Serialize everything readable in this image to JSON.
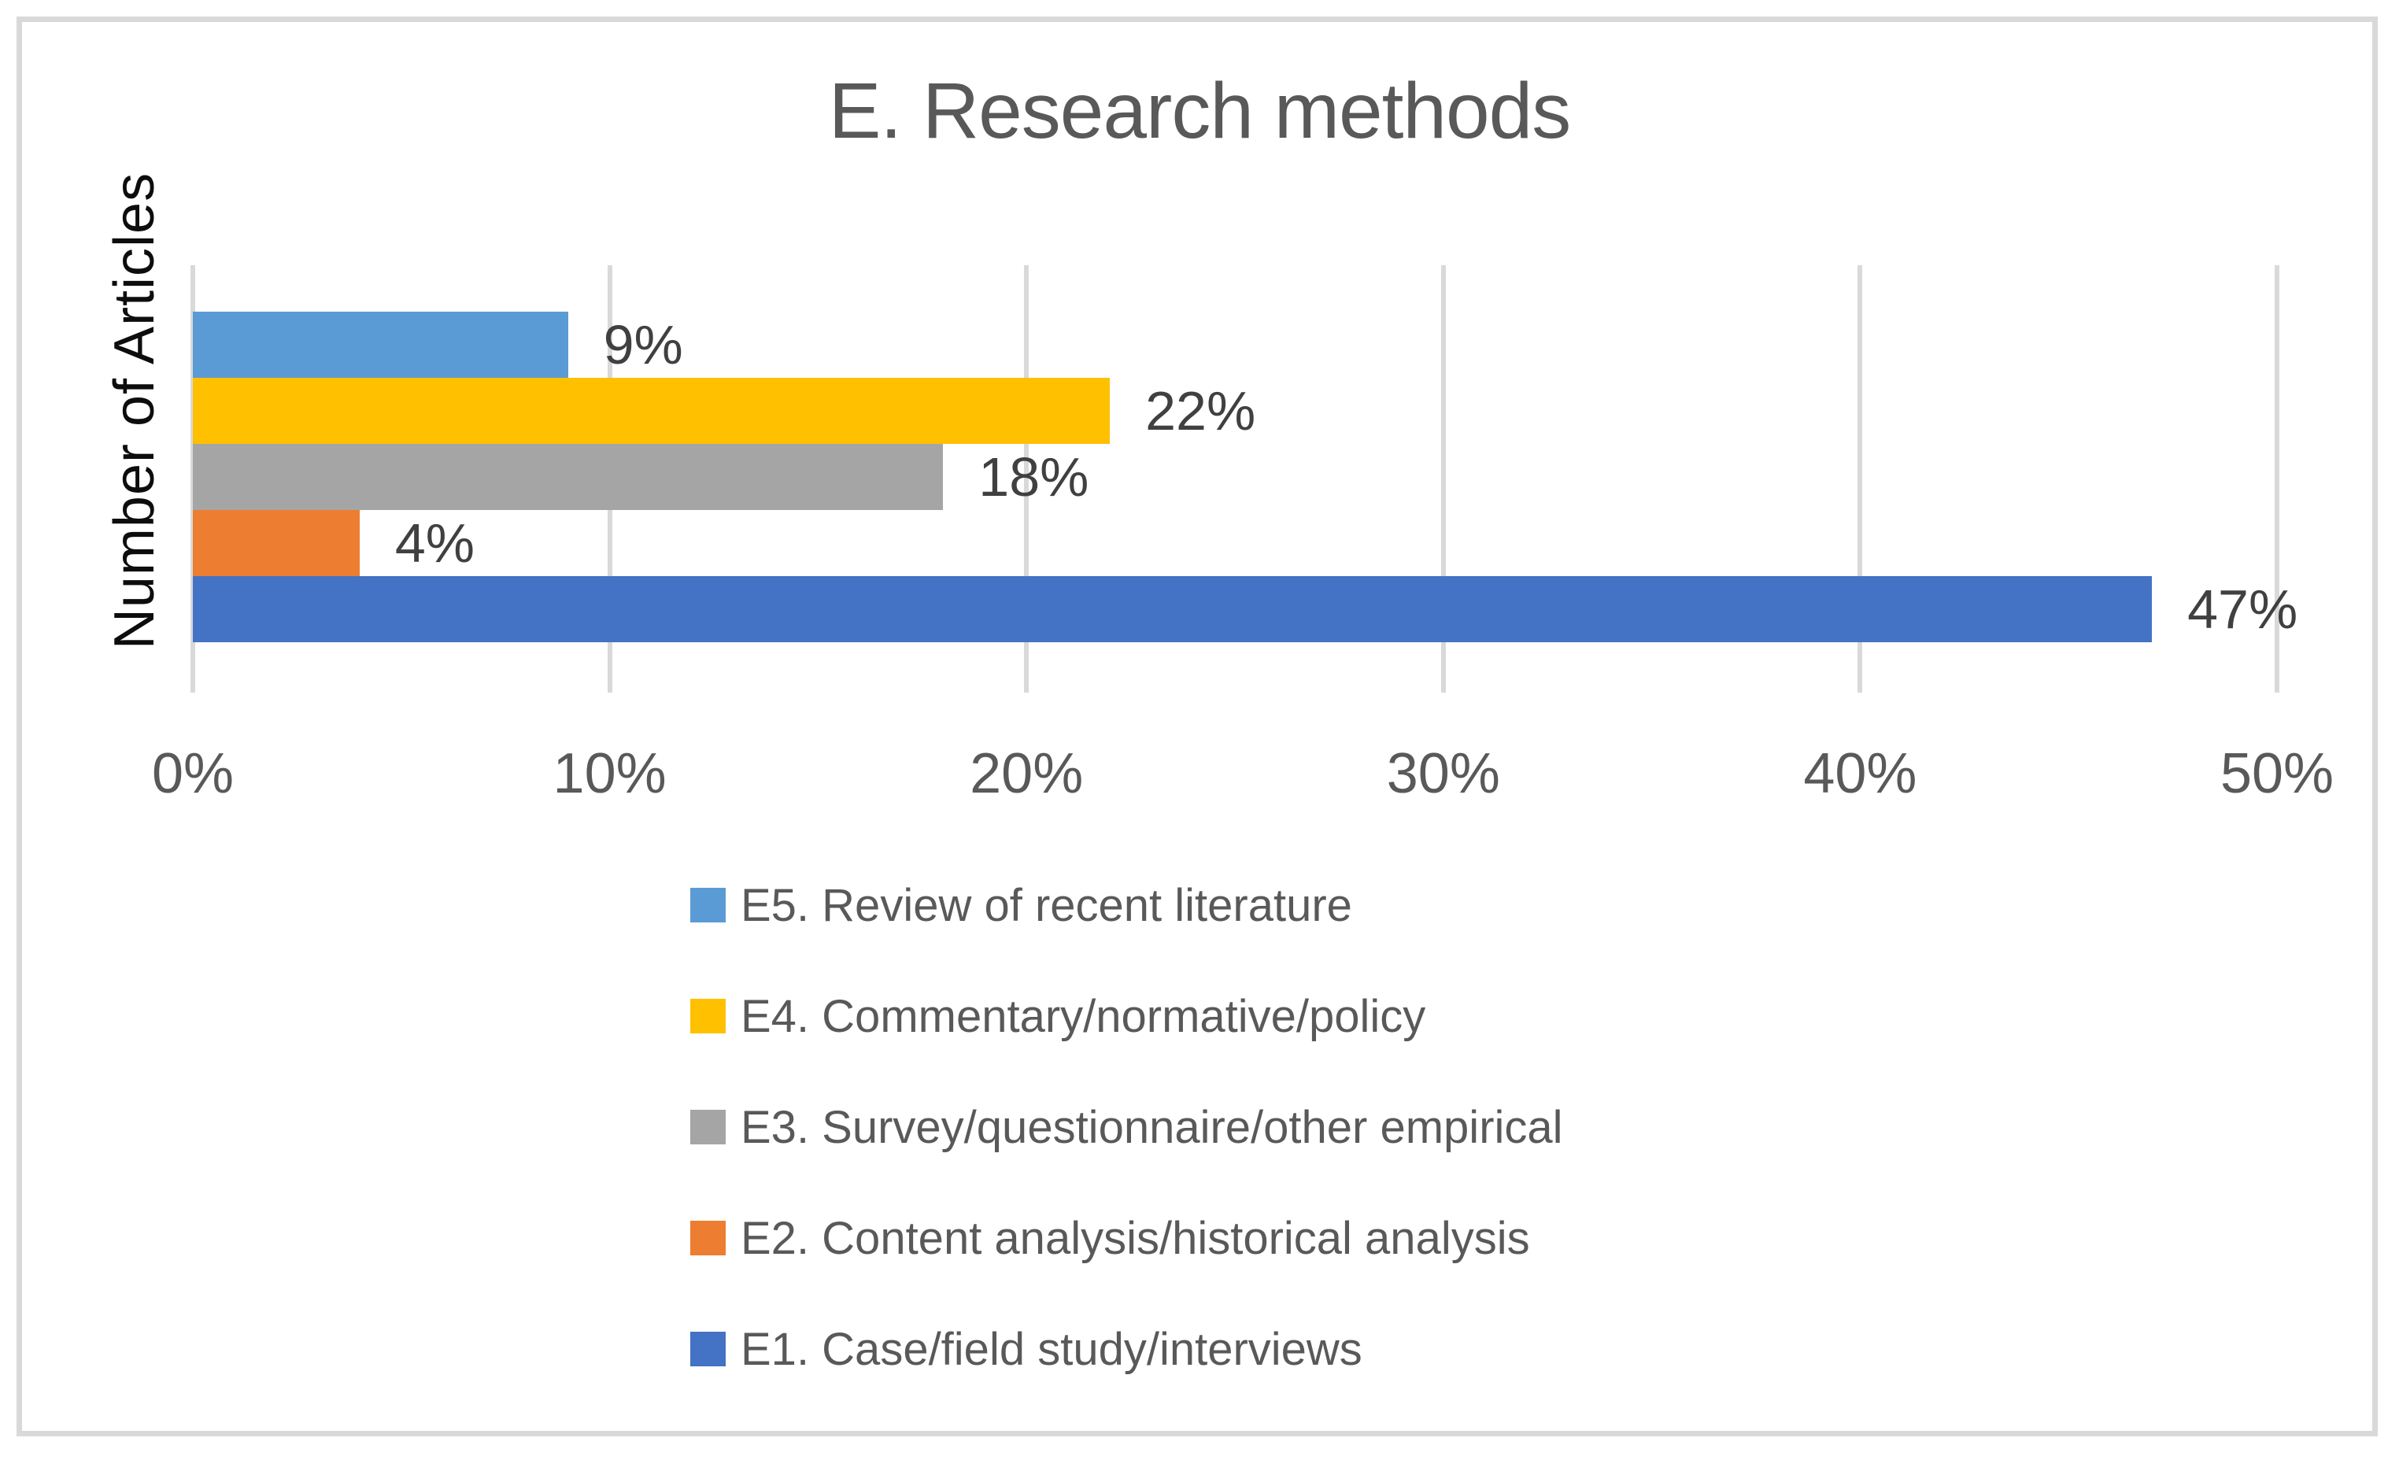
{
  "chart_data": {
    "type": "bar",
    "orientation": "horizontal",
    "title": "E. Research methods",
    "xlabel": "",
    "ylabel": "Number of Articles",
    "xlim": [
      0,
      50
    ],
    "x_tick_values": [
      0,
      10,
      20,
      30,
      40,
      50
    ],
    "x_tick_labels": [
      "0%",
      "10%",
      "20%",
      "30%",
      "40%",
      "50%"
    ],
    "grid": "vertical",
    "legend_position": "bottom",
    "series": [
      {
        "name": "E5. Review of recent literature",
        "value": 9,
        "data_label": "9%",
        "color": "#5B9BD5"
      },
      {
        "name": "E4. Commentary/normative/policy",
        "value": 22,
        "data_label": "22%",
        "color": "#FFC000"
      },
      {
        "name": "E3. Survey/questionnaire/other empirical",
        "value": 18,
        "data_label": "18%",
        "color": "#A5A5A5"
      },
      {
        "name": "E2. Content analysis/historical analysis",
        "value": 4,
        "data_label": "4%",
        "color": "#ED7D31"
      },
      {
        "name": "E1. Case/field study/interviews",
        "value": 47,
        "data_label": "47%",
        "color": "#4472C4"
      }
    ],
    "colors": {
      "gridline": "#D9D9D9",
      "outer_border": "#D9D9D9",
      "title_text": "#595959",
      "tick_text": "#595959",
      "data_label_text": "#404040",
      "axis_title_text": "#0D0D0D",
      "legend_text": "#595959"
    }
  }
}
